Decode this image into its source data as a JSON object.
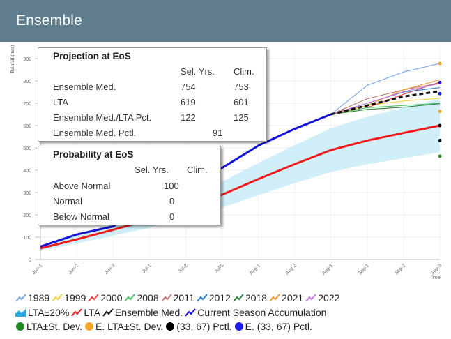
{
  "header": {
    "title": "Ensemble"
  },
  "projection_box": {
    "title": "Projection at EoS",
    "col_headers": [
      "Sel. Yrs.",
      "Clim."
    ],
    "rows": [
      {
        "label": "Ensemble Med.",
        "sel": "754",
        "clim": "753"
      },
      {
        "label": "LTA",
        "sel": "619",
        "clim": "601"
      },
      {
        "label": "Ensemble Med./LTA Pct.",
        "sel": "122",
        "clim": "125"
      },
      {
        "label": "Ensemble Med. Pctl.",
        "sel": "91",
        "clim": ""
      }
    ]
  },
  "probability_box": {
    "title": "Probability at EoS",
    "col_headers": [
      "Sel. Yrs.",
      "Clim."
    ],
    "rows": [
      {
        "label": "Above Normal",
        "sel": "100"
      },
      {
        "label": "Normal",
        "sel": "0"
      },
      {
        "label": "Below Normal",
        "sel": "0"
      }
    ]
  },
  "legend": {
    "row1": [
      {
        "label": "1989",
        "icon": "line-icon",
        "color": "#7aa9e6"
      },
      {
        "label": "1999",
        "icon": "line-icon",
        "color": "#f2d23c"
      },
      {
        "label": "2000",
        "icon": "line-icon",
        "color": "#e84040"
      },
      {
        "label": "2008",
        "icon": "line-icon",
        "color": "#4fc06c"
      },
      {
        "label": "2011",
        "icon": "line-icon",
        "color": "#c07878"
      },
      {
        "label": "2012",
        "icon": "line-icon",
        "color": "#2a7fd0"
      },
      {
        "label": "2018",
        "icon": "line-icon",
        "color": "#2e7d3a"
      },
      {
        "label": "2021",
        "icon": "line-icon",
        "color": "#f29a2e"
      },
      {
        "label": "2022",
        "icon": "line-icon",
        "color": "#c77ae6"
      }
    ],
    "row2": [
      {
        "label": "LTA±20%",
        "icon": "area-icon",
        "color": "#29a8e0"
      },
      {
        "label": "LTA",
        "icon": "line-icon",
        "color": "#ee1c1c"
      },
      {
        "label": "Ensemble Med.",
        "icon": "line-icon",
        "color": "#111111"
      },
      {
        "label": "Current Season Accumulation",
        "icon": "line-icon",
        "color": "#1414d6"
      }
    ],
    "row3": [
      {
        "label": "LTA±St. Dev.",
        "icon": "dot-icon",
        "color": "#1f8a1f"
      },
      {
        "label": "E. LTA±St. Dev.",
        "icon": "dot-icon",
        "color": "#f5a623"
      },
      {
        "label": "(33, 67) Pctl.",
        "icon": "dot-icon",
        "color": "#000000"
      },
      {
        "label": "E. (33, 67) Pctl.",
        "icon": "dot-icon",
        "color": "#1a1aee"
      }
    ]
  },
  "chart_data": {
    "type": "line",
    "ylabel": "Rainfall (mm)",
    "xlabel": "Time",
    "ylim": [
      0,
      950
    ],
    "yticks": [
      0,
      100,
      200,
      300,
      400,
      500,
      600,
      700,
      800,
      900
    ],
    "categories": [
      "Jun-1",
      "Jun-2",
      "Jun-3",
      "Jul-1",
      "Jul-2",
      "Jul-3",
      "Aug-1",
      "Aug-2",
      "Aug-3",
      "Sep-1",
      "Sep-2",
      "Sep-3"
    ],
    "lta_band": {
      "name": "LTA±20%",
      "upper": [
        60,
        108,
        160,
        214,
        276,
        348,
        432,
        512,
        588,
        640,
        680,
        720
      ],
      "lower": [
        40,
        72,
        106,
        142,
        184,
        232,
        288,
        342,
        392,
        426,
        454,
        480
      ]
    },
    "lta": {
      "name": "LTA",
      "values": [
        50,
        90,
        133,
        178,
        230,
        290,
        360,
        427,
        490,
        533,
        567,
        600
      ]
    },
    "current_season": {
      "name": "Current Season Accumulation",
      "values": [
        58,
        112,
        148,
        255,
        315,
        410,
        510,
        585,
        650
      ]
    },
    "ensemble_median": {
      "name": "Ensemble Med.",
      "values": [
        null,
        null,
        null,
        null,
        null,
        null,
        null,
        null,
        650,
        690,
        730,
        754
      ]
    },
    "scenario_years": [
      {
        "name": "1989",
        "values": [
          650,
          780,
          840,
          878
        ]
      },
      {
        "name": "1999",
        "values": [
          650,
          690,
          710,
          722
        ]
      },
      {
        "name": "2000",
        "values": [
          650,
          680,
          740,
          795
        ]
      },
      {
        "name": "2008",
        "values": [
          650,
          680,
          690,
          700
        ]
      },
      {
        "name": "2011",
        "values": [
          650,
          720,
          760,
          790
        ]
      },
      {
        "name": "2012",
        "values": [
          650,
          700,
          750,
          770
        ]
      },
      {
        "name": "2018",
        "values": [
          650,
          672,
          682,
          698
        ]
      },
      {
        "name": "2021",
        "values": [
          650,
          690,
          760,
          805
        ]
      },
      {
        "name": "2022",
        "values": [
          650,
          700,
          752,
          788
        ]
      }
    ],
    "eos_markers": [
      {
        "name": "1989 end",
        "value": 878,
        "color": "#f5a623"
      },
      {
        "name": "E. (33, 67) Pctl. upper",
        "value": 793,
        "color": "#1a1aee"
      },
      {
        "name": "E. (33, 67) Pctl. lower",
        "value": 743,
        "color": "#1a1aee"
      },
      {
        "name": "E. LTA±St. Dev. lower",
        "value": 664,
        "color": "#f5a623"
      },
      {
        "name": "(33, 67) Pctl. upper",
        "value": 600,
        "color": "#000000"
      },
      {
        "name": "(33, 67) Pctl. lower",
        "value": 533,
        "color": "#000000"
      },
      {
        "name": "LTA±St. Dev. lower",
        "value": 463,
        "color": "#1f8a1f"
      }
    ]
  }
}
